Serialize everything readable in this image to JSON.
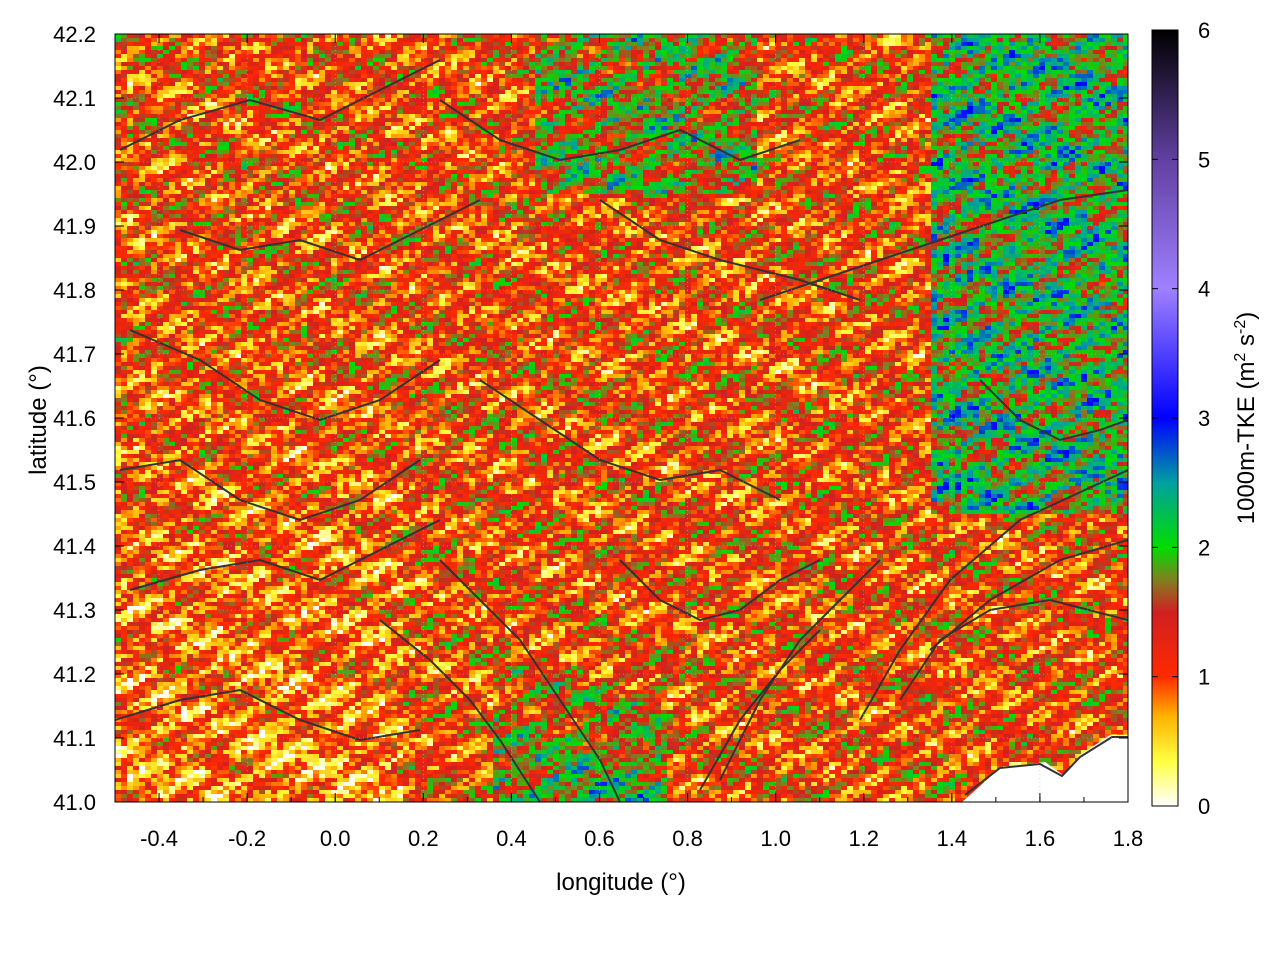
{
  "chart_data": {
    "type": "heatmap",
    "xlabel": "longitude (°)",
    "ylabel": "latitude (°)",
    "xlim": [
      -0.5,
      1.8
    ],
    "ylim": [
      41.0,
      42.2
    ],
    "xticks": [
      "-0.4",
      "-0.2",
      "0.0",
      "0.2",
      "0.4",
      "0.6",
      "0.8",
      "1.0",
      "1.2",
      "1.4",
      "1.6",
      "1.8"
    ],
    "xtick_values": [
      -0.4,
      -0.2,
      0.0,
      0.2,
      0.4,
      0.6,
      0.8,
      1.0,
      1.2,
      1.4,
      1.6,
      1.8
    ],
    "yticks": [
      "41.0",
      "41.1",
      "41.2",
      "41.3",
      "41.4",
      "41.5",
      "41.6",
      "41.7",
      "41.8",
      "41.9",
      "42.0",
      "42.1",
      "42.2"
    ],
    "ytick_values": [
      41.0,
      41.1,
      41.2,
      41.3,
      41.4,
      41.5,
      41.6,
      41.7,
      41.8,
      41.9,
      42.0,
      42.1,
      42.2
    ],
    "grid": true,
    "colorbar": {
      "label": "1000m-TKE (m",
      "label_sup1": "2",
      "label_mid": " s",
      "label_sup2": "-2",
      "label_end": ")",
      "range": [
        0,
        6
      ],
      "ticks": [
        "0",
        "1",
        "2",
        "3",
        "4",
        "5",
        "6"
      ],
      "tick_values": [
        0,
        1,
        2,
        3,
        4,
        5,
        6
      ],
      "colors": [
        {
          "value": 0.0,
          "color": "#ffffff"
        },
        {
          "value": 0.35,
          "color": "#ffff40"
        },
        {
          "value": 0.7,
          "color": "#ffb000"
        },
        {
          "value": 1.0,
          "color": "#ff2a00"
        },
        {
          "value": 1.5,
          "color": "#d02020"
        },
        {
          "value": 1.75,
          "color": "#808020"
        },
        {
          "value": 2.0,
          "color": "#00dd00"
        },
        {
          "value": 2.5,
          "color": "#00a0a0"
        },
        {
          "value": 3.0,
          "color": "#0000ff"
        },
        {
          "value": 4.0,
          "color": "#a080ff"
        },
        {
          "value": 5.0,
          "color": "#6040a0"
        },
        {
          "value": 6.0,
          "color": "#000000"
        }
      ]
    },
    "contour_color": "#333333"
  }
}
